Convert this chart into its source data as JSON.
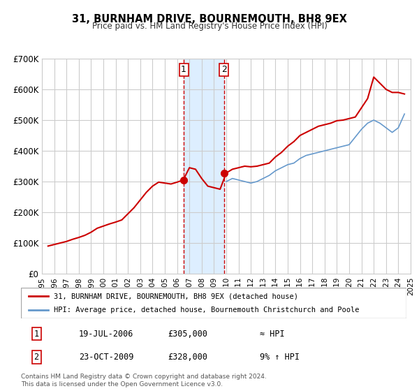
{
  "title": "31, BURNHAM DRIVE, BOURNEMOUTH, BH8 9EX",
  "subtitle": "Price paid vs. HM Land Registry's House Price Index (HPI)",
  "xlim": [
    1995,
    2025
  ],
  "ylim": [
    0,
    700000
  ],
  "yticks": [
    0,
    100000,
    200000,
    300000,
    400000,
    500000,
    600000,
    700000
  ],
  "ytick_labels": [
    "£0",
    "£100K",
    "£200K",
    "£300K",
    "£400K",
    "£500K",
    "£600K",
    "£700K"
  ],
  "sale1_date": 2006.54,
  "sale1_price": 305000,
  "sale1_label": "1",
  "sale2_date": 2009.81,
  "sale2_price": 328000,
  "sale2_label": "2",
  "shade_x1": 2006.54,
  "shade_x2": 2009.81,
  "line1_color": "#cc0000",
  "line2_color": "#6699cc",
  "dot_color": "#cc0000",
  "shade_color": "#ddeeff",
  "vline_color": "#cc0000",
  "grid_color": "#cccccc",
  "bg_color": "#ffffff",
  "legend_line1": "31, BURNHAM DRIVE, BOURNEMOUTH, BH8 9EX (detached house)",
  "legend_line2": "HPI: Average price, detached house, Bournemouth Christchurch and Poole",
  "table_row1": [
    "1",
    "19-JUL-2006",
    "£305,000",
    "≈ HPI"
  ],
  "table_row2": [
    "2",
    "23-OCT-2009",
    "£328,000",
    "9% ↑ HPI"
  ],
  "footnote1": "Contains HM Land Registry data © Crown copyright and database right 2024.",
  "footnote2": "This data is licensed under the Open Government Licence v3.0.",
  "hpi_data_x": [
    1995.5,
    1996,
    1996.5,
    1997,
    1997.5,
    1998,
    1998.5,
    1999,
    1999.5,
    2000,
    2000.5,
    2001,
    2001.5,
    2002,
    2002.5,
    2003,
    2003.5,
    2004,
    2004.5,
    2005,
    2005.5,
    2006,
    2006.5,
    2007,
    2007.5,
    2008,
    2008.5,
    2009,
    2009.5,
    2010,
    2010.5,
    2011,
    2011.5,
    2012,
    2012.5,
    2013,
    2013.5,
    2014,
    2014.5,
    2015,
    2015.5,
    2016,
    2016.5,
    2017,
    2017.5,
    2018,
    2018.5,
    2019,
    2019.5,
    2020,
    2020.5,
    2021,
    2021.5,
    2022,
    2022.5,
    2023,
    2023.5,
    2024,
    2024.5
  ],
  "hpi_data_y": [
    null,
    null,
    null,
    null,
    null,
    null,
    null,
    null,
    null,
    null,
    null,
    null,
    null,
    null,
    null,
    null,
    null,
    null,
    null,
    null,
    null,
    null,
    null,
    null,
    null,
    null,
    null,
    null,
    null,
    300000,
    310000,
    305000,
    300000,
    295000,
    300000,
    310000,
    320000,
    335000,
    345000,
    355000,
    360000,
    375000,
    385000,
    390000,
    395000,
    400000,
    405000,
    410000,
    415000,
    420000,
    445000,
    470000,
    490000,
    500000,
    490000,
    475000,
    460000,
    475000,
    520000
  ],
  "price_data_x": [
    1995.5,
    1996,
    1996.5,
    1997,
    1997.5,
    1998,
    1998.5,
    1999,
    1999.5,
    2000,
    2000.5,
    2001,
    2001.5,
    2002,
    2002.5,
    2003,
    2003.5,
    2004,
    2004.5,
    2005,
    2005.5,
    2006,
    2006.5,
    2007,
    2007.5,
    2008,
    2008.5,
    2009,
    2009.5,
    2010,
    2010.5,
    2011,
    2011.5,
    2012,
    2012.5,
    2013,
    2013.5,
    2014,
    2014.5,
    2015,
    2015.5,
    2016,
    2016.5,
    2017,
    2017.5,
    2018,
    2018.5,
    2019,
    2019.5,
    2020,
    2020.5,
    2021,
    2021.5,
    2022,
    2022.5,
    2023,
    2023.5,
    2024,
    2024.5
  ],
  "price_data_y": [
    90000,
    95000,
    100000,
    105000,
    112000,
    118000,
    125000,
    135000,
    148000,
    155000,
    162000,
    168000,
    175000,
    195000,
    215000,
    240000,
    265000,
    285000,
    298000,
    295000,
    292000,
    298000,
    305000,
    345000,
    340000,
    310000,
    285000,
    280000,
    275000,
    328000,
    340000,
    345000,
    350000,
    348000,
    350000,
    355000,
    360000,
    380000,
    395000,
    415000,
    430000,
    450000,
    460000,
    470000,
    480000,
    485000,
    490000,
    498000,
    500000,
    505000,
    510000,
    540000,
    570000,
    640000,
    620000,
    600000,
    590000,
    590000,
    585000
  ]
}
